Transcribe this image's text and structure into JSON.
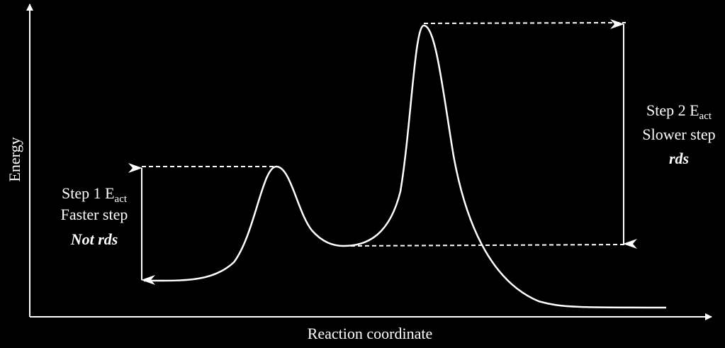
{
  "axes": {
    "y_label": "Energy",
    "x_label": "Reaction coordinate"
  },
  "step1": {
    "line1": {
      "text": "Step 1 E",
      "subscript": "act"
    },
    "line2": "Faster step",
    "line3": "Not rds"
  },
  "step2": {
    "line1": {
      "text": "Step 2 E",
      "subscript": "act"
    },
    "line2": "Slower step",
    "line3": "rds"
  }
}
